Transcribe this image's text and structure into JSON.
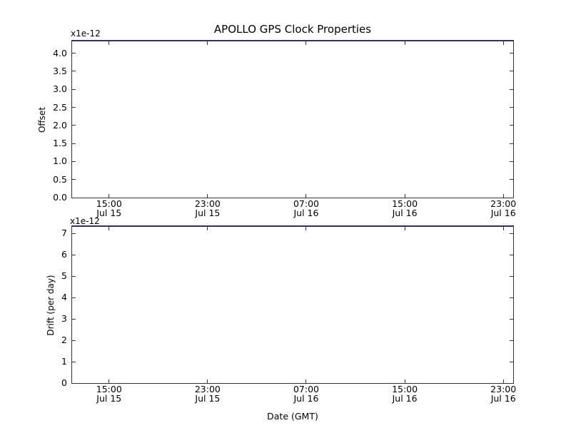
{
  "figure": {
    "title": "APOLLO GPS Clock Properties",
    "background_color": "#ffffff",
    "frame_color": "#333333",
    "top_spine_color": "#32325e",
    "text_color": "#000000"
  },
  "chart_data": [
    {
      "type": "line",
      "title": "APOLLO GPS Clock Properties",
      "ylabel": "Offset",
      "y_offset_label": "x1e-12",
      "ylim": [
        0.0,
        4.33
      ],
      "ytick_labels": [
        "0.0",
        "0.5",
        "1.0",
        "1.5",
        "2.0",
        "2.5",
        "3.0",
        "3.5",
        "4.0"
      ],
      "xlim_hours": [
        0,
        35.8
      ],
      "xticks": [
        {
          "hour": 3,
          "time": "15:00",
          "date": "Jul 15"
        },
        {
          "hour": 11,
          "time": "23:00",
          "date": "Jul 15"
        },
        {
          "hour": 19,
          "time": "07:00",
          "date": "Jul 16"
        },
        {
          "hour": 27,
          "time": "15:00",
          "date": "Jul 16"
        },
        {
          "hour": 35,
          "time": "23:00",
          "date": "Jul 16"
        }
      ],
      "grid": false,
      "legend": null,
      "series": []
    },
    {
      "type": "line",
      "ylabel": "Drift (per day)",
      "y_offset_label": "x1e-12",
      "xlabel": "Date (GMT)",
      "ylim": [
        0.0,
        7.3
      ],
      "ytick_labels": [
        "0",
        "1",
        "2",
        "3",
        "4",
        "5",
        "6",
        "7"
      ],
      "xlim_hours": [
        0,
        35.8
      ],
      "xticks": [
        {
          "hour": 3,
          "time": "15:00",
          "date": "Jul 15"
        },
        {
          "hour": 11,
          "time": "23:00",
          "date": "Jul 15"
        },
        {
          "hour": 19,
          "time": "07:00",
          "date": "Jul 16"
        },
        {
          "hour": 27,
          "time": "15:00",
          "date": "Jul 16"
        },
        {
          "hour": 35,
          "time": "23:00",
          "date": "Jul 16"
        }
      ],
      "grid": false,
      "legend": null,
      "series": []
    }
  ]
}
